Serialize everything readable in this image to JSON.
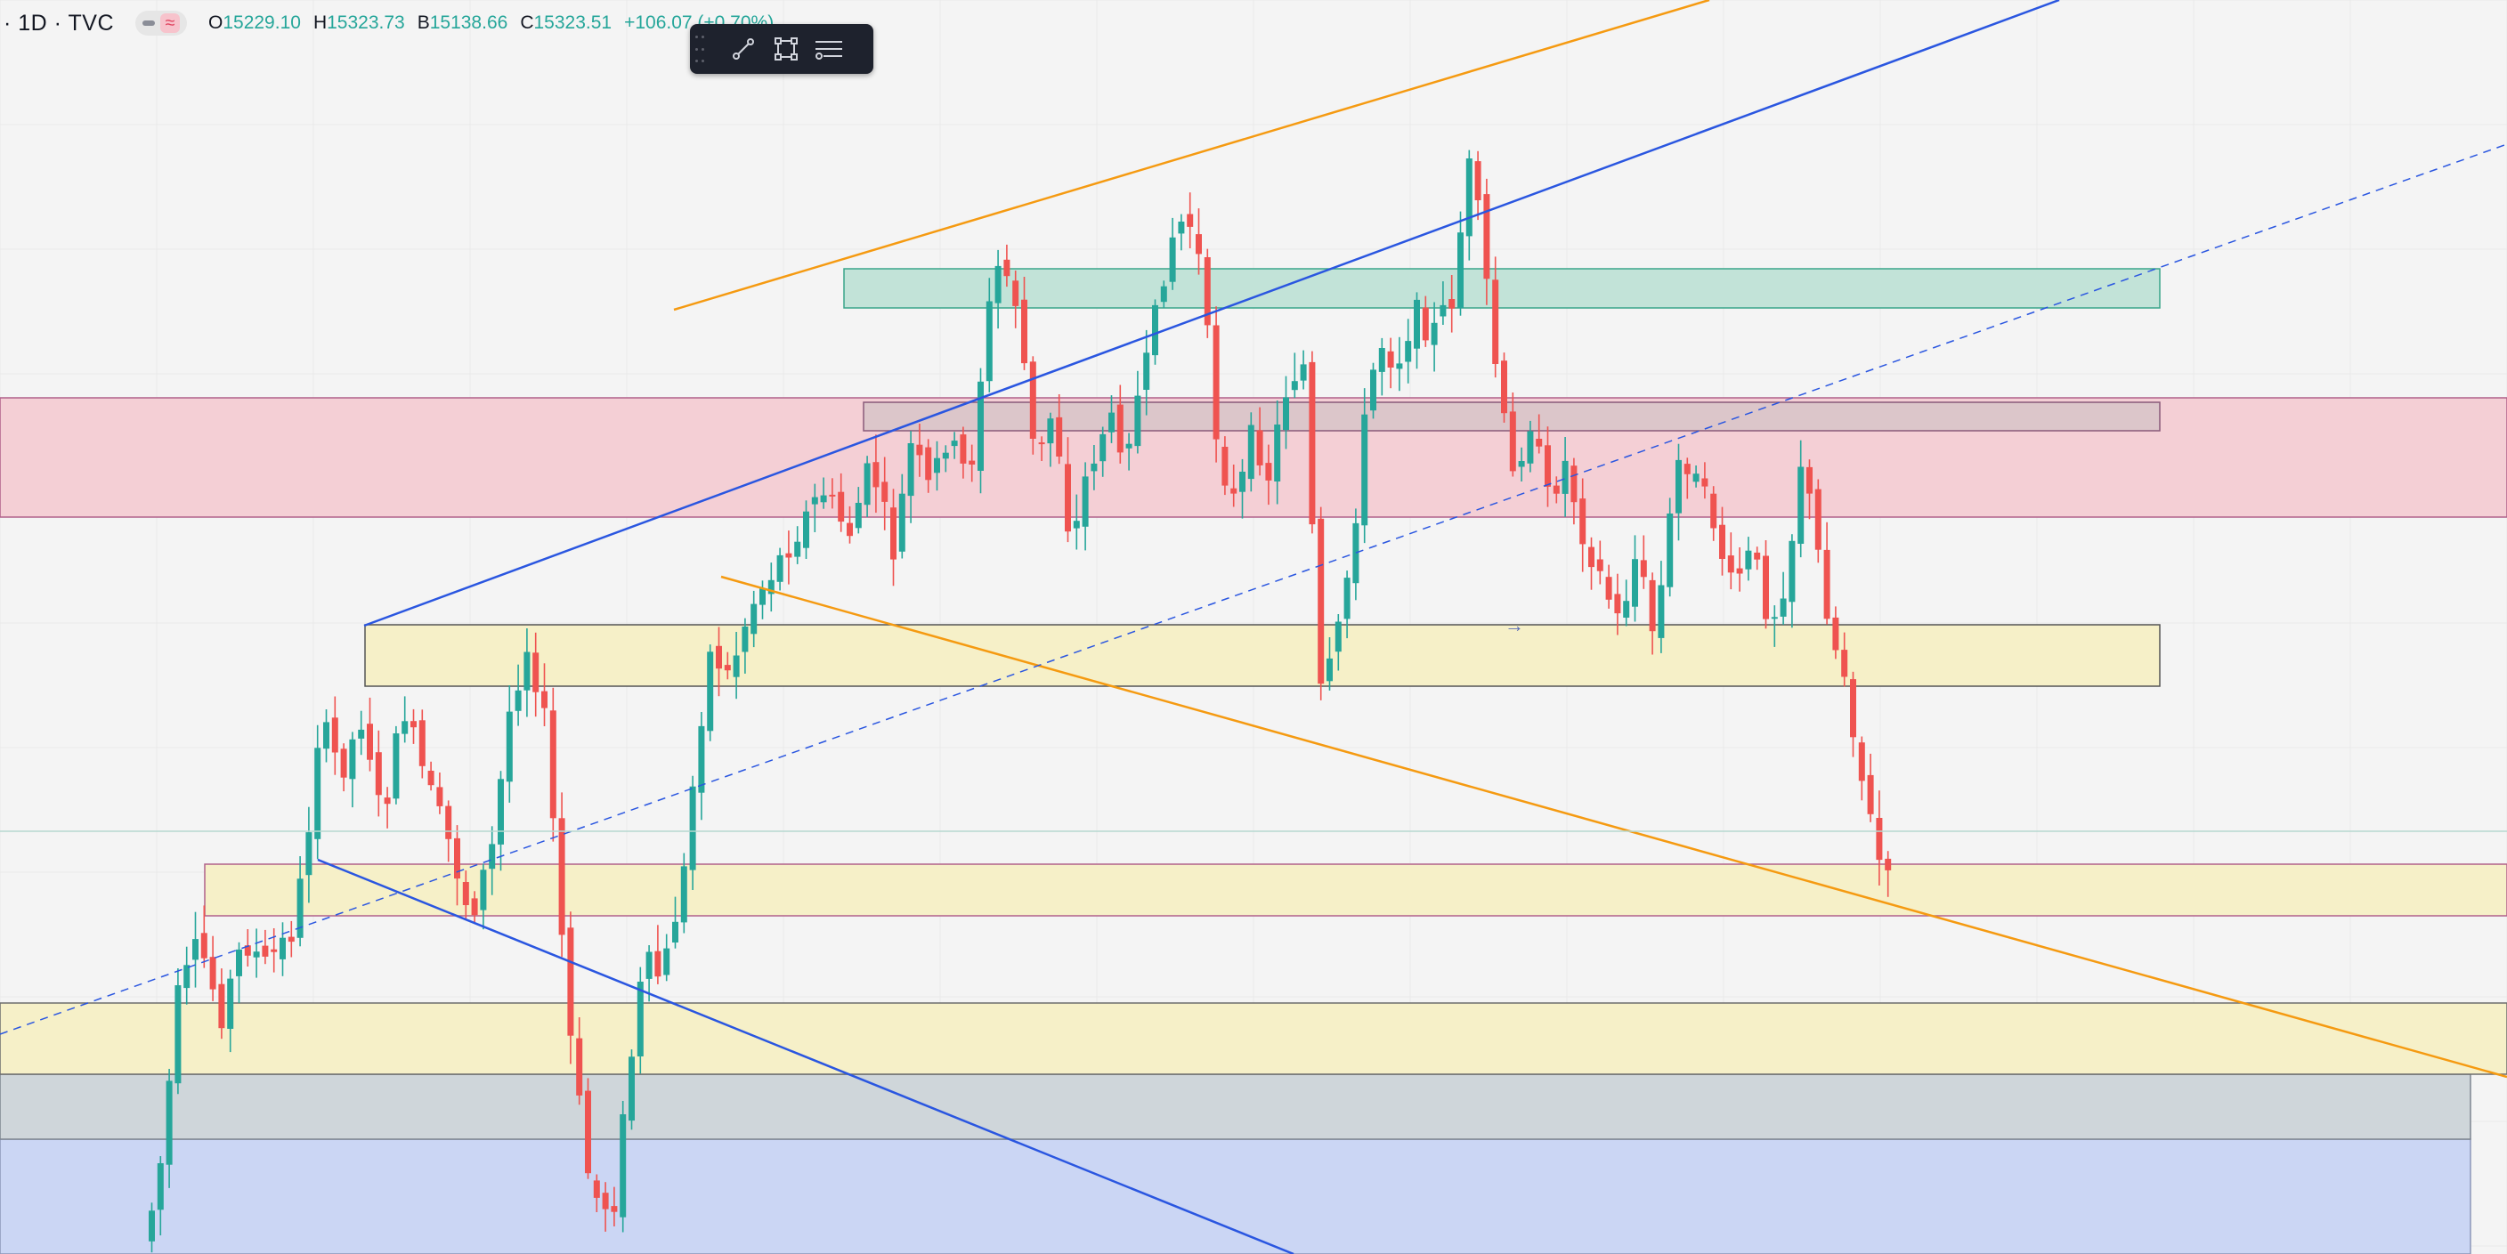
{
  "header": {
    "symbol": "· 1D · TVC",
    "ohlc": [
      {
        "key": "O",
        "value": "15229.10"
      },
      {
        "key": "H",
        "value": "15323.73"
      },
      {
        "key": "B",
        "value": "15138.66"
      },
      {
        "key": "C",
        "value": "15323.51"
      }
    ],
    "change": "+106.07 (+0.70%)"
  },
  "toolbar": {
    "icons": [
      "drag-handle-icon",
      "trend-line-icon",
      "rectangle-icon",
      "settings-lines-icon"
    ]
  },
  "colors": {
    "background": "#f4f4f4",
    "up": "#26a69a",
    "down": "#ef5350",
    "blue_line": "#2a56e0",
    "orange_line": "#f59a11",
    "yellow_zone": "#f6f0c8",
    "red_zone": "#f4cfd5",
    "green_zone": "#c2e3d8",
    "gray_zone": "#cfd6da",
    "blue_zone": "#cbd6f4"
  },
  "arrow_glyph": "→"
}
